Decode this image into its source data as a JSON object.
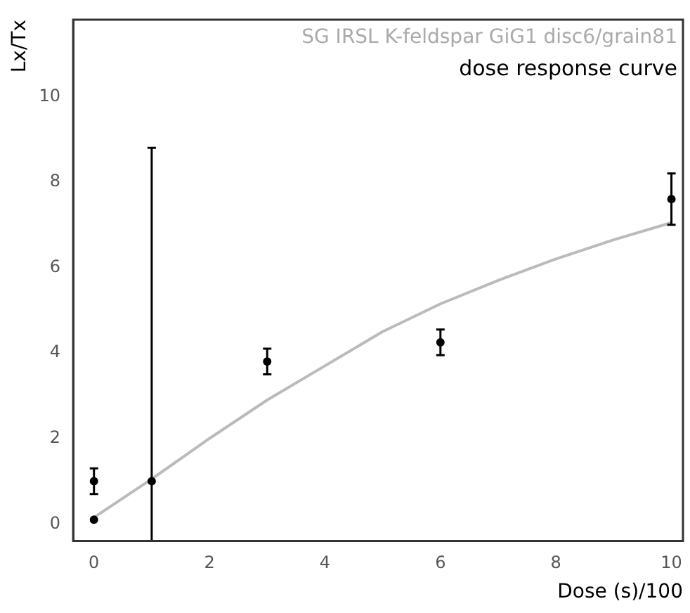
{
  "chart_data": {
    "type": "scatter",
    "title": "dose response curve",
    "subtitle": "SG IRSL K-feldspar GiG1 disc6/grain81",
    "xlabel": "Dose (s)/100",
    "ylabel": "Lx/Tx",
    "xlim": [
      -0.36,
      10.2
    ],
    "xticks": [
      0,
      2,
      4,
      6,
      8,
      10
    ],
    "ylim": [
      -0.4,
      11.8
    ],
    "yticks": [
      0,
      2,
      4,
      6,
      8,
      10
    ],
    "grid": false,
    "legend": false,
    "series": [
      {
        "marker": "circle",
        "color": "#000000",
        "x": [
          0,
          0,
          1,
          3,
          6,
          10
        ],
        "values": [
          0.1,
          1.0,
          1.0,
          3.8,
          4.25,
          7.6
        ],
        "errors": [
          null,
          0.3,
          [
            -0.4,
            8.8
          ],
          0.3,
          0.3,
          0.6
        ]
      },
      {
        "type": "line",
        "marker": "none",
        "color": "#bbbbbb",
        "x": [
          0,
          1,
          2,
          3,
          4,
          5,
          6,
          7,
          8,
          9,
          10
        ],
        "values": [
          0.15,
          1.05,
          2.0,
          2.9,
          3.7,
          4.5,
          5.15,
          5.7,
          6.2,
          6.65,
          7.05
        ]
      }
    ]
  }
}
